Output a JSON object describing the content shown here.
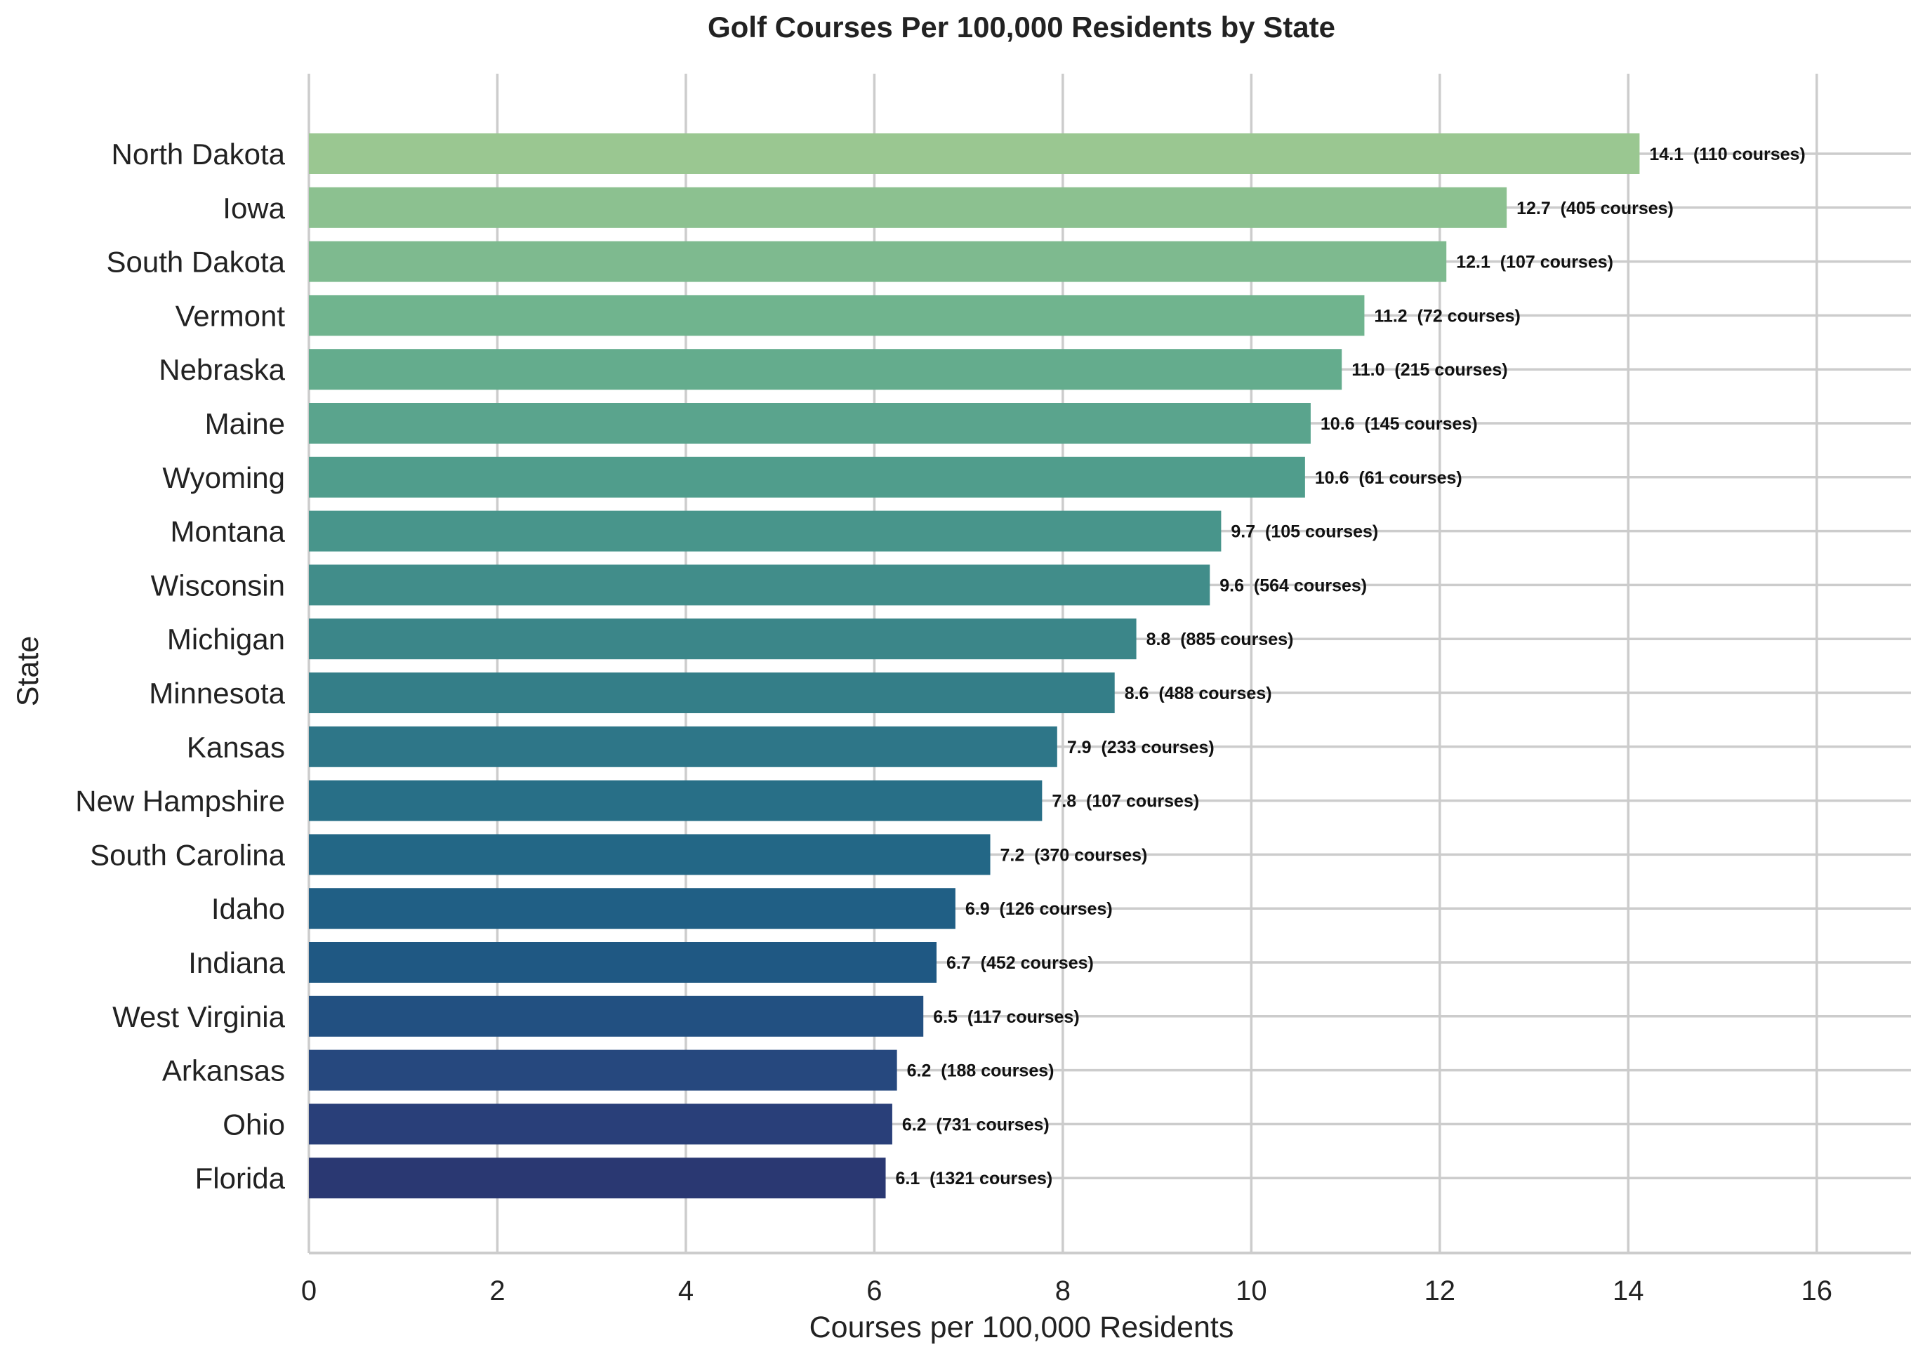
{
  "chart_data": {
    "type": "bar",
    "orientation": "horizontal",
    "title": "Golf Courses Per 100,000 Residents by State",
    "xlabel": "Courses per 100,000 Residents",
    "ylabel": "State",
    "xlim": [
      0,
      17
    ],
    "xticks": [
      0,
      2,
      4,
      6,
      8,
      10,
      12,
      14,
      16
    ],
    "grid": true,
    "categories": [
      "North Dakota",
      "Iowa",
      "South Dakota",
      "Vermont",
      "Nebraska",
      "Maine",
      "Wyoming",
      "Montana",
      "Wisconsin",
      "Michigan",
      "Minnesota",
      "Kansas",
      "New Hampshire",
      "South Carolina",
      "Idaho",
      "Indiana",
      "West Virginia",
      "Arkansas",
      "Ohio",
      "Florida"
    ],
    "values": [
      14.12,
      12.71,
      12.07,
      11.2,
      10.96,
      10.63,
      10.57,
      9.68,
      9.56,
      8.78,
      8.55,
      7.94,
      7.78,
      7.23,
      6.86,
      6.66,
      6.52,
      6.24,
      6.19,
      6.12
    ],
    "data_labels": [
      "14.1  (110 courses)",
      "12.7  (405 courses)",
      "12.1  (107 courses)",
      "11.2  (72 courses)",
      "11.0  (215 courses)",
      "10.6  (145 courses)",
      "10.6  (61 courses)",
      "9.7  (105 courses)",
      "9.6  (564 courses)",
      "8.8  (885 courses)",
      "8.6  (488 courses)",
      "7.9  (233 courses)",
      "7.8  (107 courses)",
      "7.2  (370 courses)",
      "6.9  (126 courses)",
      "6.7  (452 courses)",
      "6.5  (117 courses)",
      "6.2  (188 courses)",
      "6.2  (731 courses)",
      "6.1  (1321 courses)"
    ],
    "colors": [
      "#9AC791",
      "#8CC190",
      "#7EBA8F",
      "#70B48E",
      "#64AC8D",
      "#5AA48D",
      "#509D8C",
      "#48958B",
      "#418D8A",
      "#3B8689",
      "#347E88",
      "#2E7688",
      "#286F87",
      "#236786",
      "#205F85",
      "#1F5883",
      "#225081",
      "#26487E",
      "#293F79",
      "#2A3872"
    ]
  }
}
